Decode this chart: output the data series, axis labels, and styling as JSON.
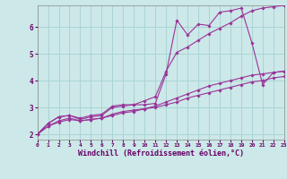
{
  "xlabel": "Windchill (Refroidissement éolien,°C)",
  "ylabel": "",
  "bg_color": "#cce8e8",
  "grid_color": "#aad4d4",
  "line_color": "#993399",
  "xlim": [
    0,
    23
  ],
  "ylim": [
    1.8,
    6.8
  ],
  "xticks": [
    0,
    1,
    2,
    3,
    4,
    5,
    6,
    7,
    8,
    9,
    10,
    11,
    12,
    13,
    14,
    15,
    16,
    17,
    18,
    19,
    20,
    21,
    22,
    23
  ],
  "yticks": [
    2,
    3,
    4,
    5,
    6
  ],
  "lines": [
    {
      "x": [
        0,
        1,
        2,
        3,
        4,
        5,
        6,
        7,
        8,
        9,
        10,
        11,
        12,
        13,
        14,
        15,
        16,
        17,
        18,
        19,
        20,
        21,
        22,
        23
      ],
      "y": [
        2.0,
        2.4,
        2.65,
        2.7,
        2.6,
        2.7,
        2.75,
        3.05,
        3.1,
        3.1,
        3.1,
        3.15,
        4.25,
        6.25,
        5.7,
        6.1,
        6.05,
        6.55,
        6.6,
        6.7,
        5.4,
        3.85,
        4.3,
        4.35
      ]
    },
    {
      "x": [
        0,
        1,
        2,
        3,
        4,
        5,
        6,
        7,
        8,
        9,
        10,
        11,
        12,
        13,
        14,
        15,
        16,
        17,
        18,
        19,
        20,
        21,
        22,
        23
      ],
      "y": [
        2.0,
        2.4,
        2.65,
        2.7,
        2.55,
        2.65,
        2.7,
        3.0,
        3.05,
        3.1,
        3.25,
        3.4,
        4.35,
        5.05,
        5.25,
        5.5,
        5.75,
        5.95,
        6.15,
        6.4,
        6.6,
        6.7,
        6.75,
        6.8
      ]
    },
    {
      "x": [
        0,
        1,
        2,
        3,
        4,
        5,
        6,
        7,
        8,
        9,
        10,
        11,
        12,
        13,
        14,
        15,
        16,
        17,
        18,
        19,
        20,
        21,
        22,
        23
      ],
      "y": [
        2.0,
        2.3,
        2.5,
        2.6,
        2.5,
        2.55,
        2.6,
        2.75,
        2.85,
        2.9,
        2.95,
        3.05,
        3.2,
        3.35,
        3.5,
        3.65,
        3.8,
        3.9,
        4.0,
        4.1,
        4.2,
        4.25,
        4.3,
        4.35
      ]
    },
    {
      "x": [
        0,
        1,
        2,
        3,
        4,
        5,
        6,
        7,
        8,
        9,
        10,
        11,
        12,
        13,
        14,
        15,
        16,
        17,
        18,
        19,
        20,
        21,
        22,
        23
      ],
      "y": [
        2.0,
        2.3,
        2.45,
        2.55,
        2.5,
        2.55,
        2.6,
        2.7,
        2.8,
        2.85,
        2.95,
        3.0,
        3.1,
        3.2,
        3.35,
        3.45,
        3.55,
        3.65,
        3.75,
        3.85,
        3.95,
        4.0,
        4.1,
        4.15
      ]
    }
  ]
}
